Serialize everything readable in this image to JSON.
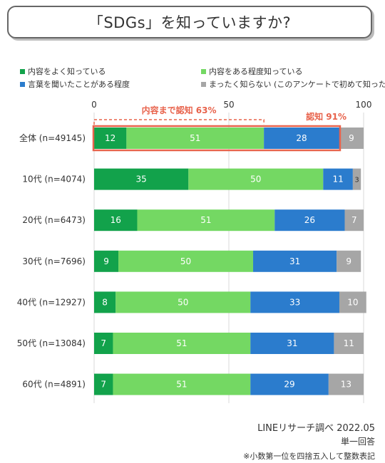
{
  "title": "「SDGs」を知っていますか?",
  "colors": {
    "dark_green": "#12a24b",
    "light_green": "#74d863",
    "blue": "#2b7ccd",
    "gray": "#a6a6a6",
    "highlight": "#e8634c"
  },
  "chart_data": {
    "type": "bar",
    "orientation": "horizontal",
    "stacked": true,
    "xlim": [
      0,
      100
    ],
    "xticks": [
      "0",
      "50",
      "100"
    ],
    "categories": [
      "全体 (n=49145)",
      "10代 (n=4074)",
      "20代 (n=6473)",
      "30代 (n=7696)",
      "40代 (n=12927)",
      "50代 (n=13084)",
      "60代 (n=4891)"
    ],
    "series": [
      {
        "name": "内容をよく知っている",
        "values": [
          12,
          35,
          16,
          9,
          8,
          7,
          7
        ]
      },
      {
        "name": "内容をある程度知っている",
        "values": [
          51,
          50,
          51,
          50,
          50,
          51,
          51
        ]
      },
      {
        "name": "言葉を聞いたことがある程度",
        "values": [
          28,
          11,
          26,
          31,
          33,
          31,
          29
        ]
      },
      {
        "name": "まったく知らない (このアンケートで初めて知った)",
        "values": [
          9,
          3,
          7,
          9,
          10,
          11,
          13
        ]
      }
    ],
    "annotations": {
      "content_awareness": "内容まで認知 63%",
      "awareness": "認知 91%"
    },
    "legend_position": "top"
  },
  "footer": {
    "source": "LINEリサーチ調べ 2022.05",
    "answer_type": "単一回答",
    "note": "※小数第一位を四捨五入して整数表記"
  }
}
